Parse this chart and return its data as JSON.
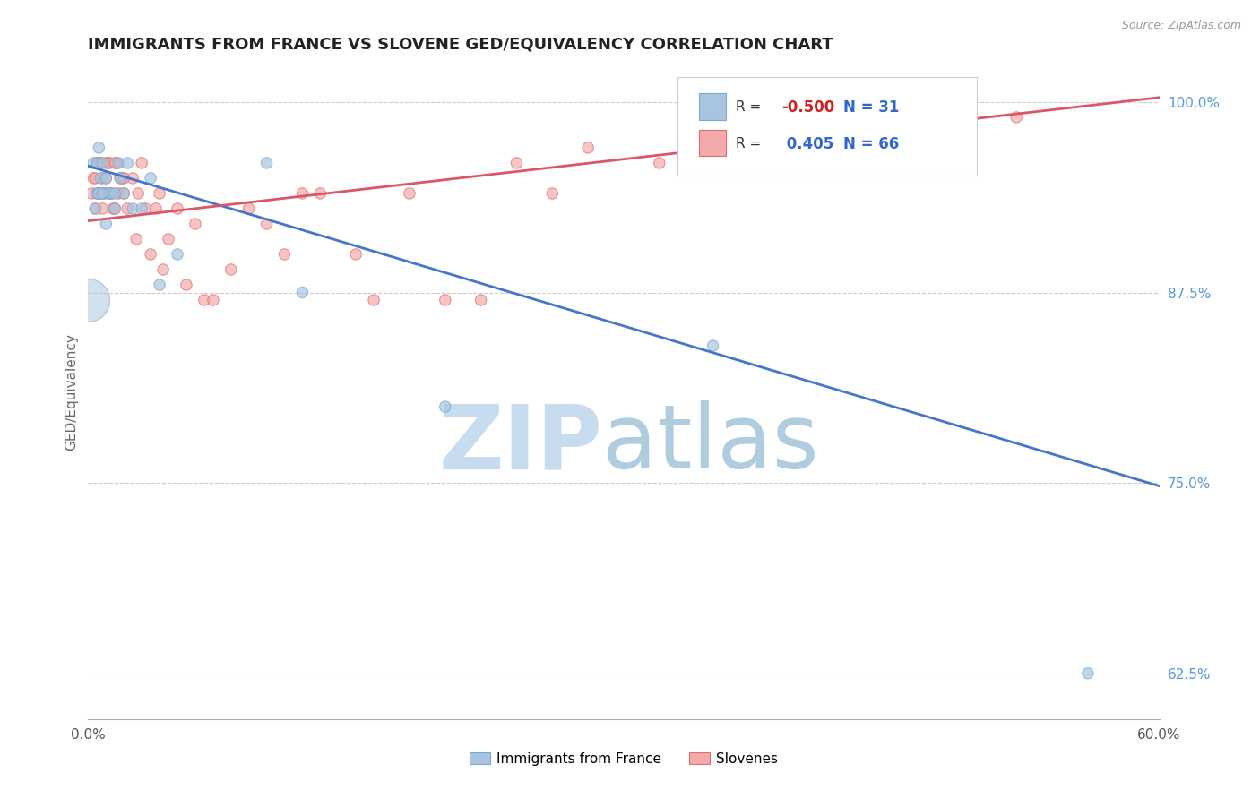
{
  "title": "IMMIGRANTS FROM FRANCE VS SLOVENE GED/EQUIVALENCY CORRELATION CHART",
  "source_text": "Source: ZipAtlas.com",
  "ylabel": "GED/Equivalency",
  "xlim": [
    0.0,
    0.6
  ],
  "ylim": [
    0.595,
    1.025
  ],
  "xticks": [
    0.0,
    0.1,
    0.2,
    0.3,
    0.4,
    0.5,
    0.6
  ],
  "xticklabels": [
    "0.0%",
    "",
    "",
    "",
    "",
    "",
    "60.0%"
  ],
  "yticks_right": [
    0.625,
    0.75,
    0.875,
    1.0
  ],
  "ytick_labels_right": [
    "62.5%",
    "75.0%",
    "87.5%",
    "100.0%"
  ],
  "blue_R": -0.5,
  "blue_N": 31,
  "pink_R": 0.405,
  "pink_N": 66,
  "blue_color": "#A8C4E0",
  "pink_color": "#F4AAAA",
  "blue_edge_color": "#7AAAD0",
  "pink_edge_color": "#E07070",
  "blue_line_color": "#4477CC",
  "pink_line_color": "#DD5566",
  "watermark_zip": "ZIP",
  "watermark_atlas": "atlas",
  "watermark_color": "#D0E4F4",
  "legend_label_blue": "Immigrants from France",
  "legend_label_pink": "Slovenes",
  "blue_trend_x": [
    0.0,
    0.6
  ],
  "blue_trend_y": [
    0.958,
    0.748
  ],
  "pink_trend_x": [
    0.0,
    0.6
  ],
  "pink_trend_y": [
    0.922,
    1.003
  ],
  "blue_points_x": [
    0.003,
    0.005,
    0.006,
    0.007,
    0.008,
    0.009,
    0.01,
    0.011,
    0.012,
    0.013,
    0.015,
    0.017,
    0.018,
    0.02,
    0.022,
    0.025,
    0.03,
    0.035,
    0.04,
    0.05,
    0.1,
    0.12,
    0.2,
    0.35,
    0.56,
    0.004,
    0.005,
    0.006,
    0.008,
    0.01,
    0.015
  ],
  "blue_points_y": [
    0.96,
    0.96,
    0.97,
    0.95,
    0.96,
    0.94,
    0.95,
    0.94,
    0.94,
    0.94,
    0.93,
    0.96,
    0.95,
    0.94,
    0.96,
    0.93,
    0.93,
    0.95,
    0.88,
    0.9,
    0.96,
    0.875,
    0.8,
    0.84,
    0.625,
    0.93,
    0.94,
    0.94,
    0.94,
    0.92,
    0.94
  ],
  "blue_points_size": [
    80,
    80,
    80,
    80,
    80,
    80,
    80,
    80,
    80,
    80,
    80,
    80,
    80,
    80,
    80,
    80,
    80,
    80,
    80,
    80,
    80,
    80,
    80,
    80,
    80,
    80,
    80,
    80,
    80,
    80,
    80
  ],
  "blue_large_x": [
    0.0
  ],
  "blue_large_y": [
    0.87
  ],
  "blue_large_size": [
    1200
  ],
  "pink_points_x": [
    0.002,
    0.003,
    0.004,
    0.005,
    0.006,
    0.006,
    0.007,
    0.008,
    0.008,
    0.009,
    0.01,
    0.011,
    0.012,
    0.013,
    0.014,
    0.015,
    0.016,
    0.017,
    0.018,
    0.019,
    0.02,
    0.022,
    0.025,
    0.027,
    0.028,
    0.03,
    0.032,
    0.035,
    0.038,
    0.04,
    0.042,
    0.045,
    0.05,
    0.055,
    0.06,
    0.065,
    0.07,
    0.08,
    0.09,
    0.1,
    0.11,
    0.12,
    0.13,
    0.15,
    0.16,
    0.18,
    0.2,
    0.22,
    0.24,
    0.26,
    0.28,
    0.32,
    0.34,
    0.38,
    0.4,
    0.44,
    0.48,
    0.52,
    0.004,
    0.005,
    0.006,
    0.007,
    0.01,
    0.012,
    0.015,
    0.02
  ],
  "pink_points_y": [
    0.94,
    0.95,
    0.93,
    0.96,
    0.94,
    0.96,
    0.94,
    0.93,
    0.95,
    0.94,
    0.95,
    0.96,
    0.94,
    0.94,
    0.93,
    0.93,
    0.96,
    0.94,
    0.95,
    0.95,
    0.94,
    0.93,
    0.95,
    0.91,
    0.94,
    0.96,
    0.93,
    0.9,
    0.93,
    0.94,
    0.89,
    0.91,
    0.93,
    0.88,
    0.92,
    0.87,
    0.87,
    0.89,
    0.93,
    0.92,
    0.9,
    0.94,
    0.94,
    0.9,
    0.87,
    0.94,
    0.87,
    0.87,
    0.96,
    0.94,
    0.97,
    0.96,
    0.96,
    0.98,
    0.98,
    0.99,
    1.0,
    0.99,
    0.95,
    0.94,
    0.96,
    0.96,
    0.96,
    0.96,
    0.96,
    0.95
  ],
  "pink_points_size": [
    80,
    80,
    80,
    80,
    80,
    80,
    80,
    80,
    80,
    80,
    80,
    80,
    80,
    80,
    80,
    80,
    80,
    80,
    80,
    80,
    80,
    80,
    80,
    80,
    80,
    80,
    80,
    80,
    80,
    80,
    80,
    80,
    80,
    80,
    80,
    80,
    80,
    80,
    80,
    80,
    80,
    80,
    80,
    80,
    80,
    80,
    80,
    80,
    80,
    80,
    80,
    80,
    80,
    80,
    80,
    80,
    80,
    80,
    80,
    80,
    80,
    80,
    80,
    80,
    80,
    80
  ]
}
